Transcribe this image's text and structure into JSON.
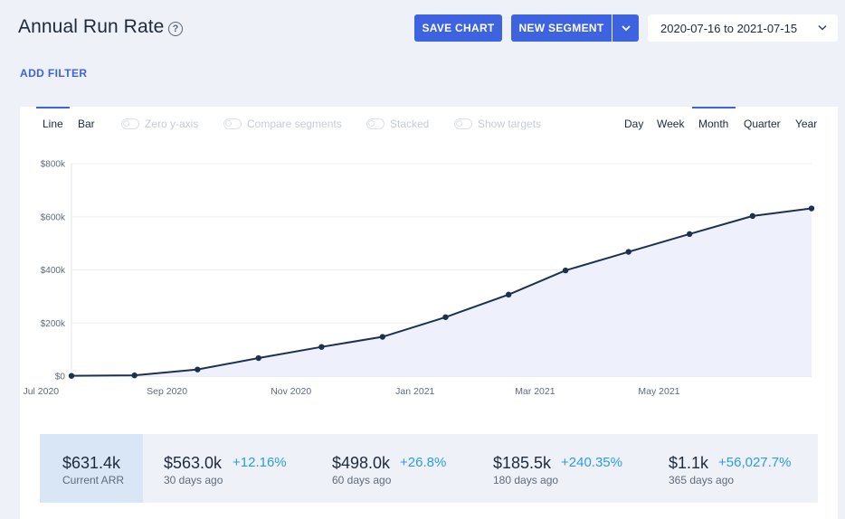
{
  "header": {
    "title": "Annual Run Rate",
    "help_glyph": "?",
    "save_label": "SAVE CHART",
    "segment_label": "NEW SEGMENT",
    "date_range": "2020-07-16 to 2021-07-15",
    "add_filter": "ADD FILTER"
  },
  "chart_tabs": [
    "Line",
    "Bar"
  ],
  "chart_tab_active": "Line",
  "toggles": [
    "Zero y-axis",
    "Compare segments",
    "Stacked",
    "Show targets"
  ],
  "period_tabs": [
    "Day",
    "Week",
    "Month",
    "Quarter",
    "Year"
  ],
  "period_active": "Month",
  "colors": {
    "accent": "#3d63e0",
    "line": "#1c3150",
    "area": "#eef0fb",
    "pct": "#2d9ce0"
  },
  "chart_data": {
    "type": "line",
    "x": [
      "2020-07-16",
      "2020-08-16",
      "2020-09-16",
      "2020-10-16",
      "2020-11-16",
      "2020-12-16",
      "2021-01-16",
      "2021-02-16",
      "2021-03-16",
      "2021-04-16",
      "2021-05-16",
      "2021-06-16",
      "2021-07-15"
    ],
    "values": [
      1100,
      3000,
      25000,
      68000,
      110000,
      148000,
      222000,
      307000,
      398000,
      468000,
      535000,
      603000,
      631400
    ],
    "ylim": [
      0,
      800000
    ],
    "y_ticks": [
      0,
      200000,
      400000,
      600000,
      800000
    ],
    "y_tick_labels": [
      "$0",
      "$200k",
      "$400k",
      "$600k",
      "$800k"
    ],
    "x_ticks": [
      "2020-07-01",
      "2020-09-01",
      "2020-11-01",
      "2021-01-01",
      "2021-03-01",
      "2021-05-01"
    ],
    "x_tick_labels": [
      "Jul 2020",
      "Sep 2020",
      "Nov 2020",
      "Jan 2021",
      "Mar 2021",
      "May 2021"
    ],
    "grid": true,
    "fill": true
  },
  "summary": {
    "current": {
      "value": "$631.4k",
      "label": "Current ARR"
    },
    "items": [
      {
        "value": "$563.0k",
        "pct": "+12.16%",
        "label": "30 days ago"
      },
      {
        "value": "$498.0k",
        "pct": "+26.8%",
        "label": "60 days ago"
      },
      {
        "value": "$185.5k",
        "pct": "+240.35%",
        "label": "180 days ago"
      },
      {
        "value": "$1.1k",
        "pct": "+56,027.7%",
        "label": "365 days ago"
      }
    ]
  }
}
